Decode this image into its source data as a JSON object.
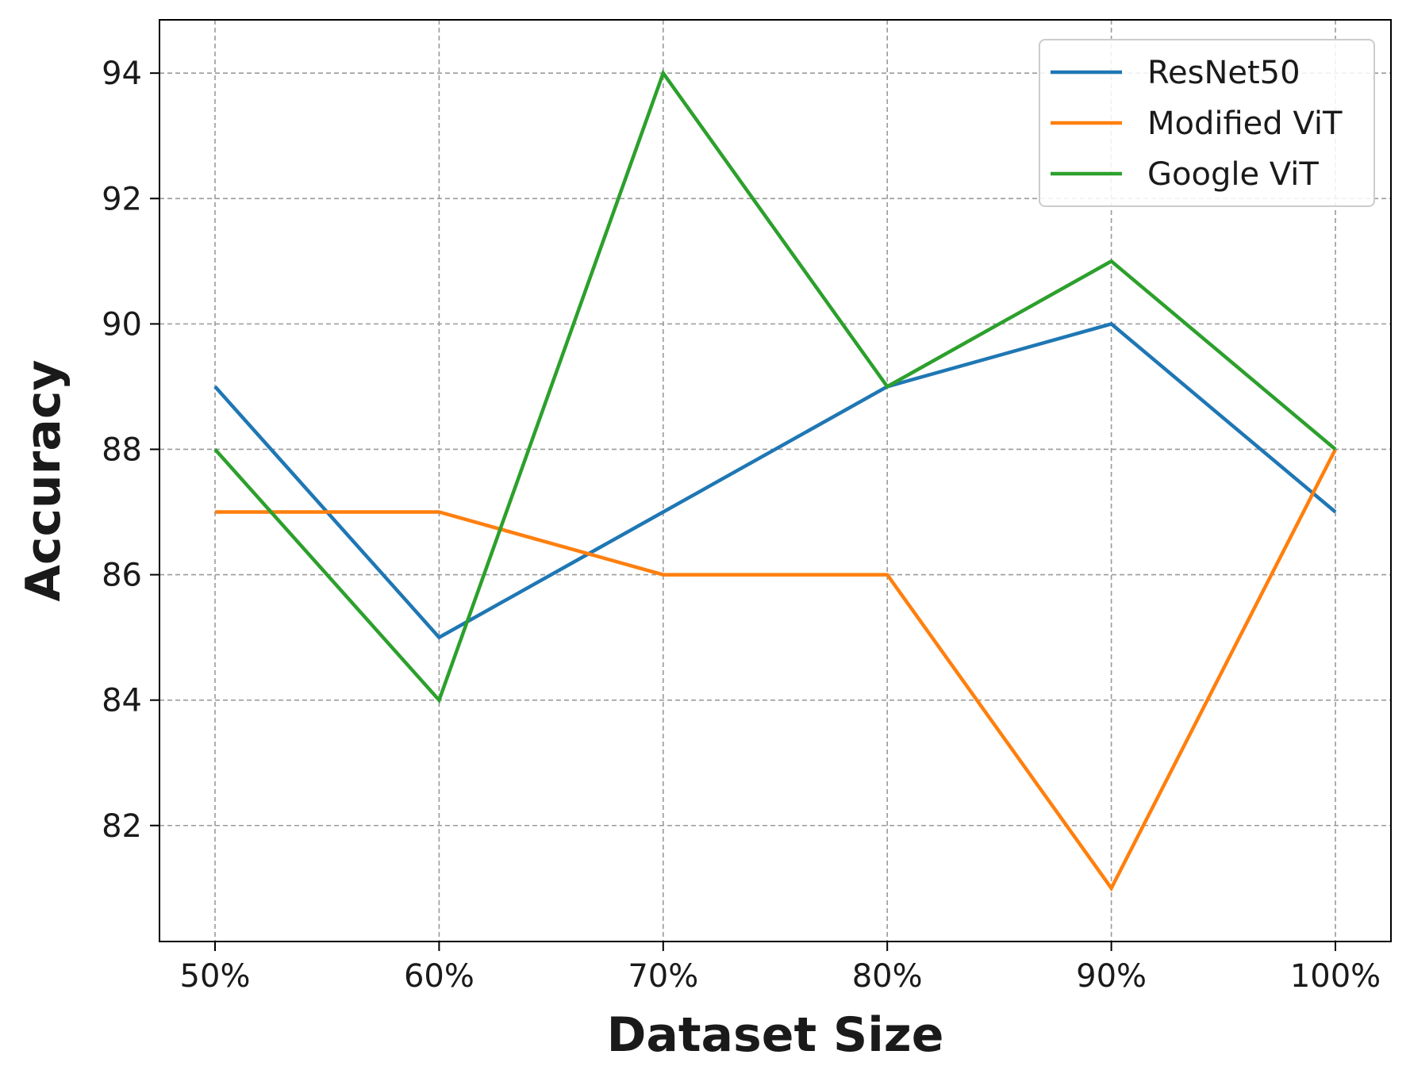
{
  "chart_data": {
    "type": "line",
    "title": "",
    "xlabel": "Dataset Size",
    "ylabel": "Accuracy",
    "categories": [
      "50%",
      "60%",
      "70%",
      "80%",
      "90%",
      "100%"
    ],
    "yticks": [
      82,
      84,
      86,
      88,
      90,
      92,
      94
    ],
    "ylim": [
      80.15,
      94.85
    ],
    "grid": true,
    "legend_position": "top-right",
    "series": [
      {
        "name": "ResNet50",
        "color": "#1f77b4",
        "values": [
          89,
          85,
          87,
          89,
          90,
          87
        ]
      },
      {
        "name": "Modified ViT",
        "color": "#ff7f0e",
        "values": [
          87,
          87,
          86,
          86,
          81,
          88
        ]
      },
      {
        "name": "Google ViT",
        "color": "#2ca02c",
        "values": [
          88,
          84,
          94,
          89,
          91,
          88
        ]
      }
    ]
  }
}
